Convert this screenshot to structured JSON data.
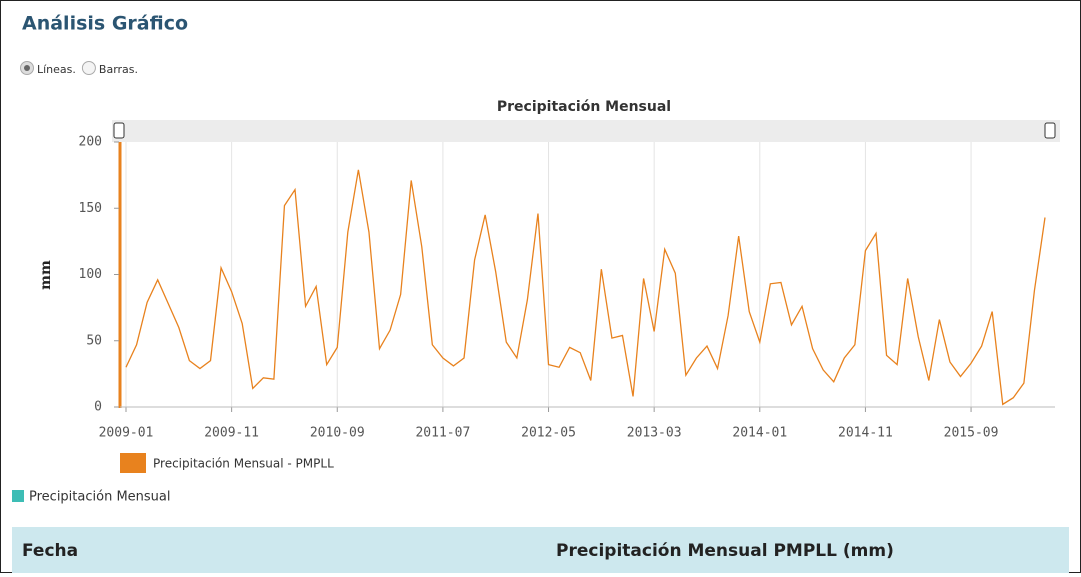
{
  "header": {
    "title": "Análisis Gráfico"
  },
  "controls": {
    "options": [
      "Líneas.",
      "Barras."
    ],
    "selected": 0
  },
  "chart_data": {
    "type": "line",
    "title": "Precipitación Mensual",
    "y_label": "mm",
    "x": [
      "2009-01",
      "2009-02",
      "2009-03",
      "2009-04",
      "2009-05",
      "2009-06",
      "2009-07",
      "2009-08",
      "2009-09",
      "2009-10",
      "2009-11",
      "2009-12",
      "2010-01",
      "2010-02",
      "2010-03",
      "2010-04",
      "2010-05",
      "2010-06",
      "2010-07",
      "2010-08",
      "2010-09",
      "2010-10",
      "2010-11",
      "2010-12",
      "2011-01",
      "2011-02",
      "2011-03",
      "2011-04",
      "2011-05",
      "2011-06",
      "2011-07",
      "2011-08",
      "2011-09",
      "2011-10",
      "2011-11",
      "2011-12",
      "2012-01",
      "2012-02",
      "2012-03",
      "2012-04",
      "2012-05",
      "2012-06",
      "2012-07",
      "2012-08",
      "2012-09",
      "2012-10",
      "2012-11",
      "2012-12",
      "2013-01",
      "2013-02",
      "2013-03",
      "2013-04",
      "2013-05",
      "2013-06",
      "2013-07",
      "2013-08",
      "2013-09",
      "2013-10",
      "2013-11",
      "2013-12",
      "2014-01",
      "2014-02",
      "2014-03",
      "2014-04",
      "2014-05",
      "2014-06",
      "2014-07",
      "2014-08",
      "2014-09",
      "2014-10",
      "2014-11",
      "2014-12",
      "2015-01",
      "2015-02",
      "2015-03",
      "2015-04",
      "2015-05",
      "2015-06",
      "2015-07",
      "2015-08",
      "2015-09",
      "2015-10",
      "2015-11",
      "2015-12",
      "2016-01",
      "2016-02",
      "2016-03",
      "2016-04"
    ],
    "series": [
      {
        "name": "Precipitación Mensual - PMPLL",
        "color": "#e8821e",
        "values": [
          30,
          47,
          79,
          96,
          78,
          60,
          35,
          29,
          35,
          105,
          87,
          63,
          14,
          22,
          21,
          152,
          164,
          76,
          91,
          32,
          45,
          132,
          179,
          132,
          44,
          58,
          85,
          171,
          121,
          47,
          37,
          31,
          37,
          111,
          145,
          102,
          49,
          37,
          81,
          146,
          32,
          30,
          45,
          41,
          20,
          104,
          52,
          54,
          8,
          97,
          57,
          119,
          101,
          24,
          37,
          46,
          29,
          69,
          129,
          72,
          49,
          93,
          94,
          62,
          76,
          44,
          28,
          19,
          37,
          47,
          118,
          131,
          39,
          32,
          97,
          53,
          20,
          66,
          34,
          23,
          33,
          46,
          72,
          2,
          7,
          18,
          88,
          143
        ]
      }
    ],
    "ylim": [
      0,
      200
    ],
    "yticks": [
      0,
      50,
      100,
      150,
      200
    ],
    "xticks": [
      "2009-01",
      "2009-11",
      "2010-09",
      "2011-07",
      "2012-05",
      "2013-03",
      "2014-01",
      "2014-11",
      "2015-09"
    ],
    "grid": "x"
  },
  "toggle_legend": {
    "label": "Precipitación Mensual",
    "color": "#3dbdb5"
  },
  "table": {
    "columns": [
      "Fecha",
      "Precipitación Mensual PMPLL (mm)"
    ]
  }
}
